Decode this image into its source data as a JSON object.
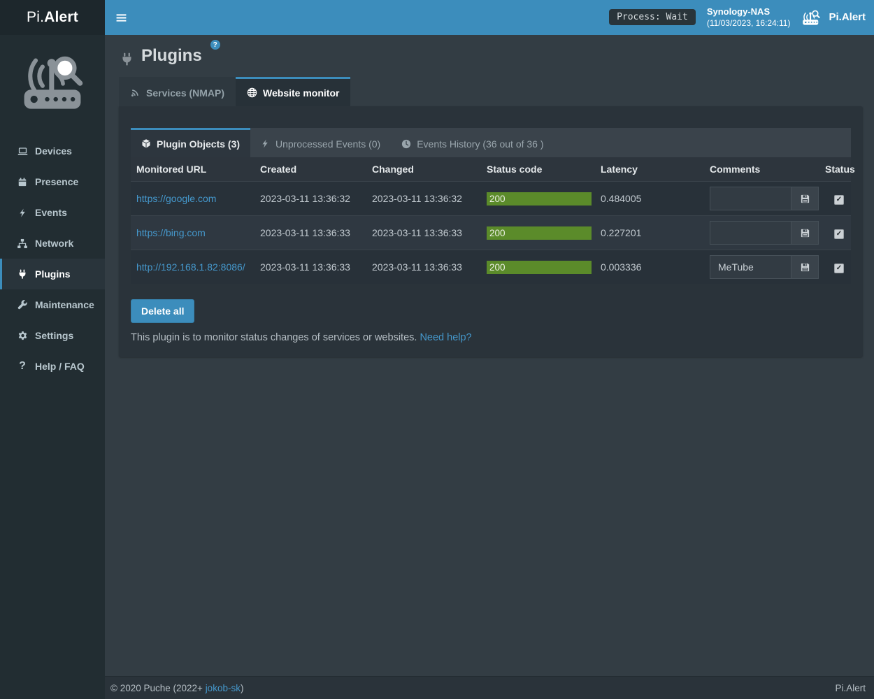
{
  "brand": {
    "logo_pi": "Pi.",
    "logo_alert": "Alert",
    "topbar_app_name": "Pi.Alert"
  },
  "topbar": {
    "process_badge": "Process: Wait",
    "host_name": "Synology-NAS",
    "host_time": "(11/03/2023, 16:24:11)"
  },
  "icons": {
    "menu": "hamburger",
    "logo_router": "router-large",
    "brand_router": "router",
    "title_plug": "plug-large",
    "save": "floppy"
  },
  "sidebar": {
    "items": [
      {
        "label": "Devices",
        "icon": "laptop",
        "active": false
      },
      {
        "label": "Presence",
        "icon": "calendar",
        "active": false
      },
      {
        "label": "Events",
        "icon": "bolt",
        "active": false
      },
      {
        "label": "Network",
        "icon": "sitemap",
        "active": false
      },
      {
        "label": "Plugins",
        "icon": "plug",
        "active": true
      },
      {
        "label": "Maintenance",
        "icon": "wrench",
        "active": false
      },
      {
        "label": "Settings",
        "icon": "gear",
        "active": false
      },
      {
        "label": "Help / FAQ",
        "icon": "question",
        "active": false
      }
    ]
  },
  "page": {
    "title": "Plugins",
    "title_badge": "?"
  },
  "tabs": [
    {
      "label": "Services (NMAP)",
      "icon": "wifi",
      "active": false
    },
    {
      "label": "Website monitor",
      "icon": "globe",
      "active": true
    }
  ],
  "plugin_tabs": [
    {
      "label": "Plugin Objects (3)",
      "icon": "cube",
      "active": true
    },
    {
      "label": "Unprocessed Events (0)",
      "icon": "bolt",
      "active": false
    },
    {
      "label": "Events History (36 out of 36 )",
      "icon": "clock",
      "active": false
    }
  ],
  "table": {
    "headers": [
      "Monitored URL",
      "Created",
      "Changed",
      "Status code",
      "Latency",
      "Comments",
      "Status"
    ],
    "rows": [
      {
        "url": "https://google.com",
        "created": "2023-03-11 13:36:32",
        "changed": "2023-03-11 13:36:32",
        "status_code": "200",
        "latency": "0.484005",
        "comment": "",
        "status_checked": true
      },
      {
        "url": "https://bing.com",
        "created": "2023-03-11 13:36:33",
        "changed": "2023-03-11 13:36:33",
        "status_code": "200",
        "latency": "0.227201",
        "comment": "",
        "status_checked": true
      },
      {
        "url": "http://192.168.1.82:8086/",
        "created": "2023-03-11 13:36:33",
        "changed": "2023-03-11 13:36:33",
        "status_code": "200",
        "latency": "0.003336",
        "comment": "MeTube",
        "status_checked": true
      }
    ]
  },
  "actions": {
    "delete_all": "Delete all"
  },
  "help": {
    "text": "This plugin is to monitor status changes of services or websites. ",
    "link": "Need help?"
  },
  "footer": {
    "copyright": "© 2020 Puche (2022+ ",
    "author_link": "jokob-sk",
    "suffix": ")",
    "right_brand": "Pi.Alert"
  },
  "colors": {
    "accent_blue": "#3c8dbc",
    "status_ok_green": "#5b8b2a",
    "link_blue": "#4598cc"
  }
}
